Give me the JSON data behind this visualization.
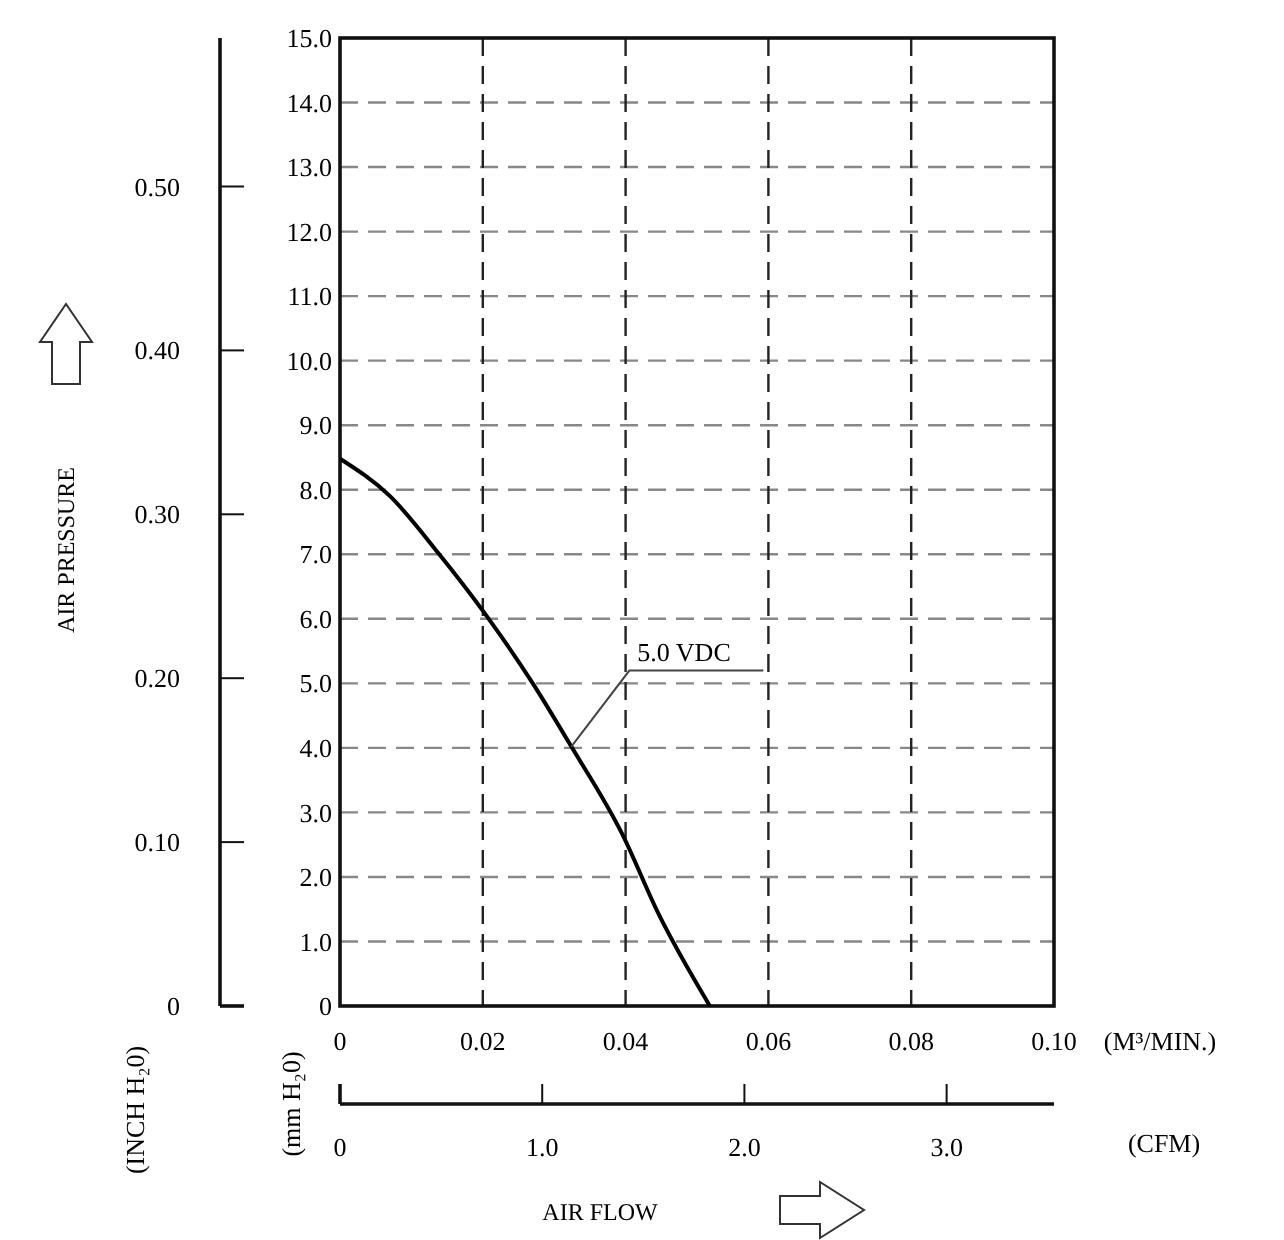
{
  "chart_data": {
    "type": "line",
    "xlabel": "(M³/MIN.)",
    "x2label": "(CFM)",
    "ylabel": "(mm H₂0)",
    "y2label": "(INCH H₂0)",
    "annotations": [
      "AIR PRESSURE",
      "AIR FLOW"
    ],
    "xlim": [
      0,
      0.1
    ],
    "xticks": [
      0,
      0.02,
      0.04,
      0.06,
      0.08,
      {
        "value": 0.1,
        "label": "0.10"
      }
    ],
    "x2lim": [
      0,
      3.531
    ],
    "x2ticks": [
      0,
      {
        "value": 1,
        "label": "1.0"
      },
      {
        "value": 2,
        "label": "2.0"
      },
      {
        "value": 3,
        "label": "3.0"
      }
    ],
    "ylim": [
      0,
      15
    ],
    "yticks": [
      0,
      {
        "value": 1,
        "label": "1.0"
      },
      {
        "value": 2,
        "label": "2.0"
      },
      {
        "value": 3,
        "label": "3.0"
      },
      {
        "value": 4,
        "label": "4.0"
      },
      {
        "value": 5,
        "label": "5.0"
      },
      {
        "value": 6,
        "label": "6.0"
      },
      {
        "value": 7,
        "label": "7.0"
      },
      {
        "value": 8,
        "label": "8.0"
      },
      {
        "value": 9,
        "label": "9.0"
      },
      {
        "value": 10,
        "label": "10.0"
      },
      {
        "value": 11,
        "label": "11.0"
      },
      {
        "value": 12,
        "label": "12.0"
      },
      {
        "value": 13,
        "label": "13.0"
      },
      {
        "value": 14,
        "label": "14.0"
      },
      {
        "value": 15,
        "label": "15.0"
      }
    ],
    "y2lim": [
      0,
      0.5906
    ],
    "y2ticks": [
      0,
      {
        "value": 0.1,
        "label": "0.10"
      },
      {
        "value": 0.2,
        "label": "0.20"
      },
      {
        "value": 0.3,
        "label": "0.30"
      },
      {
        "value": 0.4,
        "label": "0.40"
      },
      {
        "value": 0.5,
        "label": "0.50"
      }
    ],
    "grid": true,
    "series": [
      {
        "name": "5.0 VDC",
        "color": "#000000",
        "x": [
          0,
          0.007,
          0.0139,
          0.0203,
          0.027,
          0.0324,
          0.0395,
          0.0446,
          0.0518
        ],
        "values": [
          8.48,
          7.9,
          7.0,
          6.08,
          5.0,
          4.02,
          2.67,
          1.43,
          0
        ]
      }
    ]
  }
}
